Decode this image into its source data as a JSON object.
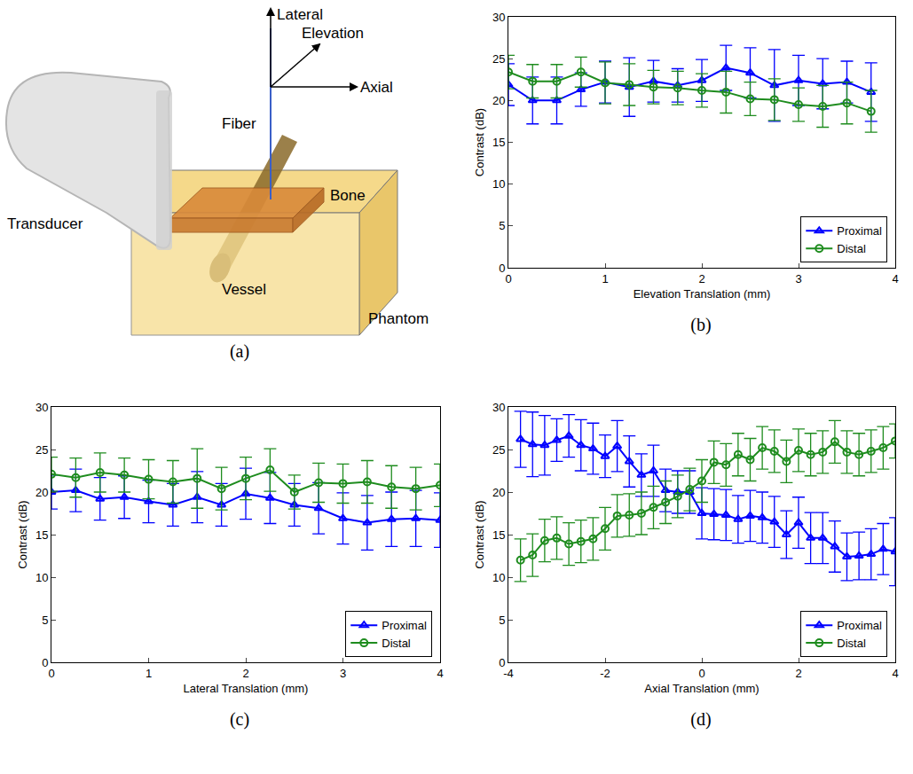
{
  "diagram": {
    "caption": "(a)",
    "labels": {
      "lateral": "Lateral",
      "elevation": "Elevation",
      "axial": "Axial",
      "fiber": "Fiber",
      "bone": "Bone",
      "transducer": "Transducer",
      "vessel": "Vessel",
      "phantom": "Phantom"
    }
  },
  "chart_data": [
    {
      "type": "line",
      "caption": "(b)",
      "x_label": "Elevation Translation (mm)",
      "y_label": "Contrast (dB)",
      "x": [
        0,
        0.25,
        0.5,
        0.75,
        1,
        1.25,
        1.5,
        1.75,
        2,
        2.25,
        2.5,
        2.75,
        3,
        3.25,
        3.5,
        3.75
      ],
      "xlim": [
        0,
        4
      ],
      "xticks": [
        0,
        1,
        2,
        3,
        4
      ],
      "ylim": [
        0,
        30
      ],
      "yticks": [
        0,
        5,
        10,
        15,
        20,
        25,
        30
      ],
      "grid": false,
      "legend": "lower right",
      "series": [
        {
          "name": "Proximal",
          "color": "#0000ff",
          "marker": "triangle",
          "line_style": "solid",
          "values": [
            21.9,
            20.0,
            20.0,
            21.3,
            22.2,
            21.6,
            22.3,
            21.8,
            22.4,
            23.9,
            23.3,
            21.8,
            22.4,
            22.0,
            22.2,
            21.0
          ],
          "error": [
            2.5,
            2.8,
            2.8,
            2.0,
            2.5,
            3.5,
            2.5,
            2.0,
            2.5,
            2.7,
            3.0,
            4.3,
            3.0,
            3.0,
            2.5,
            3.5
          ]
        },
        {
          "name": "Distal",
          "color": "#1e8c1e",
          "marker": "circle",
          "line_style": "solid",
          "values": [
            23.4,
            22.3,
            22.3,
            23.4,
            22.1,
            21.9,
            21.6,
            21.5,
            21.2,
            21.0,
            20.2,
            20.1,
            19.5,
            19.3,
            19.7,
            18.7
          ],
          "error": [
            2.0,
            2.0,
            2.0,
            1.8,
            2.5,
            2.5,
            2.0,
            2.0,
            2.0,
            2.5,
            2.0,
            2.5,
            2.0,
            2.5,
            2.5,
            2.5
          ]
        }
      ]
    },
    {
      "type": "line",
      "caption": "(c)",
      "x_label": "Lateral Translation (mm)",
      "y_label": "Contrast (dB)",
      "x": [
        0,
        0.25,
        0.5,
        0.75,
        1,
        1.25,
        1.5,
        1.75,
        2,
        2.25,
        2.5,
        2.75,
        3,
        3.25,
        3.5,
        3.75,
        4
      ],
      "xlim": [
        0,
        4
      ],
      "xticks": [
        0,
        1,
        2,
        3,
        4
      ],
      "ylim": [
        0,
        30
      ],
      "yticks": [
        0,
        5,
        10,
        15,
        20,
        25,
        30
      ],
      "grid": false,
      "legend": "lower right",
      "series": [
        {
          "name": "Proximal",
          "color": "#0000ff",
          "marker": "triangle",
          "line_style": "solid",
          "values": [
            20.0,
            20.2,
            19.2,
            19.4,
            18.9,
            18.5,
            19.4,
            18.5,
            19.8,
            19.3,
            18.5,
            18.1,
            16.9,
            16.4,
            16.8,
            16.9,
            16.7
          ],
          "error": [
            2.0,
            2.5,
            2.5,
            2.5,
            2.5,
            2.5,
            3.0,
            2.5,
            3.0,
            3.0,
            2.5,
            3.0,
            3.0,
            3.2,
            3.2,
            3.3,
            3.2
          ]
        },
        {
          "name": "Distal",
          "color": "#1e8c1e",
          "marker": "circle",
          "line_style": "solid",
          "values": [
            22.1,
            21.7,
            22.3,
            22.0,
            21.5,
            21.2,
            21.6,
            20.4,
            21.6,
            22.6,
            20.0,
            21.1,
            21.0,
            21.2,
            20.6,
            20.4,
            20.8
          ],
          "error": [
            2.0,
            2.3,
            2.3,
            2.0,
            2.3,
            2.5,
            3.5,
            2.5,
            2.5,
            2.5,
            2.0,
            2.3,
            2.3,
            2.5,
            2.5,
            2.5,
            2.5
          ]
        }
      ]
    },
    {
      "type": "line",
      "caption": "(d)",
      "x_label": "Axial Translation (mm)",
      "y_label": "Contrast (dB)",
      "x": [
        -3.75,
        -3.5,
        -3.25,
        -3,
        -2.75,
        -2.5,
        -2.25,
        -2,
        -1.75,
        -1.5,
        -1.25,
        -1,
        -0.75,
        -0.5,
        -0.25,
        0,
        0.25,
        0.5,
        0.75,
        1,
        1.25,
        1.5,
        1.75,
        2,
        2.25,
        2.5,
        2.75,
        3,
        3.25,
        3.5,
        3.75,
        4
      ],
      "xlim": [
        -4,
        4
      ],
      "xticks": [
        -4,
        -2,
        0,
        2,
        4
      ],
      "ylim": [
        0,
        30
      ],
      "yticks": [
        0,
        5,
        10,
        15,
        20,
        25,
        30
      ],
      "grid": false,
      "legend": "lower right",
      "series": [
        {
          "name": "Proximal",
          "color": "#0000ff",
          "marker": "triangle",
          "line_style": "solid",
          "values": [
            26.2,
            25.6,
            25.5,
            26.1,
            26.6,
            25.5,
            25.1,
            24.2,
            25.4,
            23.6,
            22.0,
            22.5,
            20.2,
            20.0,
            20.0,
            17.5,
            17.4,
            17.3,
            16.8,
            17.2,
            17.0,
            16.5,
            15.0,
            16.4,
            14.6,
            14.6,
            13.6,
            12.4,
            12.5,
            12.7,
            13.3,
            13.0
          ],
          "error": [
            3.3,
            3.8,
            3.5,
            2.5,
            2.5,
            3.0,
            3.0,
            2.5,
            3.0,
            3.0,
            2.5,
            3.0,
            2.5,
            2.5,
            2.5,
            3.0,
            3.0,
            3.0,
            2.8,
            3.0,
            3.0,
            3.0,
            2.8,
            3.0,
            3.0,
            3.0,
            3.0,
            2.8,
            2.8,
            3.0,
            3.0,
            4.0
          ]
        },
        {
          "name": "Distal",
          "color": "#1e8c1e",
          "marker": "circle",
          "line_style": "solid",
          "values": [
            12.0,
            12.6,
            14.3,
            14.6,
            13.9,
            14.2,
            14.5,
            15.7,
            17.2,
            17.3,
            17.5,
            18.2,
            18.8,
            19.5,
            20.3,
            21.3,
            23.5,
            23.2,
            24.4,
            23.8,
            25.2,
            24.8,
            23.6,
            24.9,
            24.4,
            24.7,
            25.9,
            24.7,
            24.4,
            24.8,
            25.2,
            26.0
          ],
          "error": [
            2.5,
            2.5,
            2.5,
            2.5,
            2.5,
            2.5,
            2.5,
            2.5,
            2.5,
            2.5,
            2.5,
            2.5,
            2.5,
            2.5,
            2.5,
            2.5,
            2.5,
            2.5,
            2.5,
            2.5,
            2.5,
            2.5,
            2.5,
            2.5,
            2.5,
            2.5,
            2.5,
            2.5,
            2.5,
            2.5,
            2.5,
            2.0
          ]
        }
      ]
    }
  ]
}
